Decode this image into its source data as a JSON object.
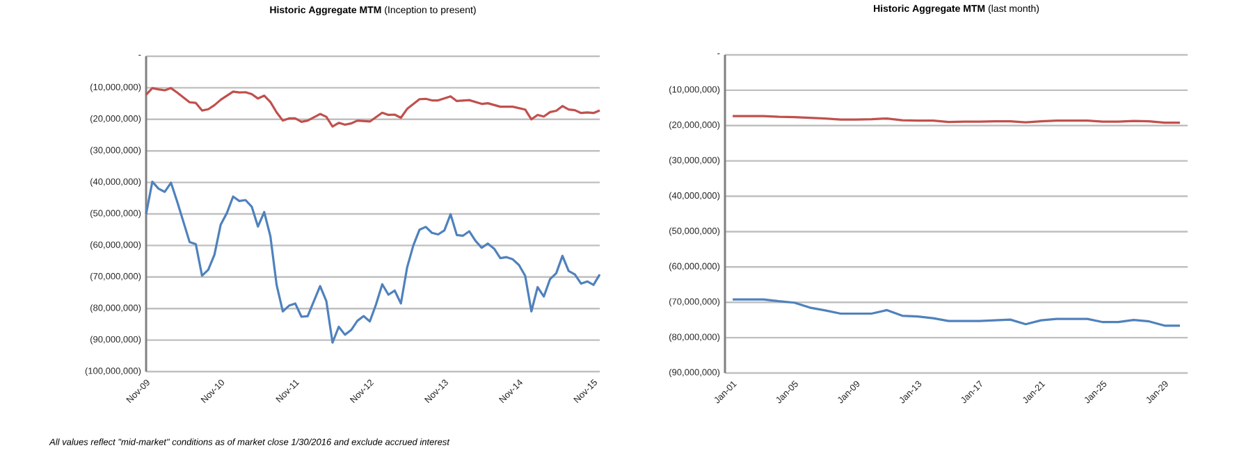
{
  "chart_data": [
    {
      "type": "line",
      "title": "**Historic Aggregate MTM** (Inception to present)",
      "xlim": [
        "2009-11",
        "2015-12"
      ],
      "xticks": [
        {
          "value": "2009-11",
          "label": "Nov-09"
        },
        {
          "value": "2010-11",
          "label": "Nov-10"
        },
        {
          "value": "2011-11",
          "label": "Nov-11"
        },
        {
          "value": "2012-11",
          "label": "Nov-12"
        },
        {
          "value": "2013-11",
          "label": "Nov-13"
        },
        {
          "value": "2014-11",
          "label": "Nov-14"
        },
        {
          "value": "2015-11",
          "label": "Nov-15"
        }
      ],
      "ylim": [
        -100000000,
        0
      ],
      "yticks": [
        {
          "value": 0,
          "label": "-"
        },
        {
          "value": -10000000,
          "label": "(10,000,000)"
        },
        {
          "value": -20000000,
          "label": "(20,000,000)"
        },
        {
          "value": -30000000,
          "label": "(30,000,000)"
        },
        {
          "value": -40000000,
          "label": "(40,000,000)"
        },
        {
          "value": -50000000,
          "label": "(50,000,000)"
        },
        {
          "value": -60000000,
          "label": "(60,000,000)"
        },
        {
          "value": -70000000,
          "label": "(70,000,000)"
        },
        {
          "value": -80000000,
          "label": "(80,000,000)"
        },
        {
          "value": -90000000,
          "label": "(90,000,000)"
        },
        {
          "value": -100000000,
          "label": "(100,000,000)"
        }
      ],
      "grid": "y",
      "series": [
        {
          "color": "#c0504d",
          "x": [
            "2009-11",
            "2009-12",
            "2010-01",
            "2010-02",
            "2010-03",
            "2010-04",
            "2010-06",
            "2010-07",
            "2010-08",
            "2010-09",
            "2010-10",
            "2010-11",
            "2010-12",
            "2011-01",
            "2011-02",
            "2011-03",
            "2011-04",
            "2011-05",
            "2011-06",
            "2011-07",
            "2011-08",
            "2011-09",
            "2011-10",
            "2011-11",
            "2011-12",
            "2012-01",
            "2012-03",
            "2012-04",
            "2012-05",
            "2012-06",
            "2012-07",
            "2012-08",
            "2012-09",
            "2012-11",
            "2013-01",
            "2013-02",
            "2013-03",
            "2013-04",
            "2013-05",
            "2013-07",
            "2013-08",
            "2013-09",
            "2013-10",
            "2013-12",
            "2014-01",
            "2014-03",
            "2014-05",
            "2014-06",
            "2014-08",
            "2014-10",
            "2014-12",
            "2015-01",
            "2015-02",
            "2015-03",
            "2015-04",
            "2015-05",
            "2015-06",
            "2015-07",
            "2015-08",
            "2015-09",
            "2015-10",
            "2015-11",
            "2015-12"
          ],
          "values": [
            -12200000,
            -10100000,
            -10500000,
            -10800000,
            -10100000,
            -11500000,
            -14600000,
            -14800000,
            -17200000,
            -16800000,
            -15500000,
            -13800000,
            -12500000,
            -11200000,
            -11500000,
            -11400000,
            -12000000,
            -13400000,
            -12500000,
            -14500000,
            -17800000,
            -20400000,
            -19700000,
            -19700000,
            -20800000,
            -20400000,
            -18300000,
            -19200000,
            -22300000,
            -21100000,
            -21700000,
            -21300000,
            -20400000,
            -20700000,
            -17900000,
            -18600000,
            -18500000,
            -19500000,
            -16700000,
            -13600000,
            -13500000,
            -14000000,
            -14000000,
            -12700000,
            -14200000,
            -13900000,
            -15100000,
            -14900000,
            -16000000,
            -16000000,
            -16900000,
            -20000000,
            -18600000,
            -19100000,
            -17700000,
            -17300000,
            -15800000,
            -16900000,
            -17100000,
            -18000000,
            -17800000,
            -18000000,
            -17200000
          ]
        },
        {
          "color": "#4f81bd",
          "x": [
            "2009-11",
            "2009-12",
            "2010-01",
            "2010-02",
            "2010-03",
            "2010-04",
            "2010-06",
            "2010-07",
            "2010-08",
            "2010-09",
            "2010-10",
            "2010-11",
            "2010-12",
            "2011-01",
            "2011-02",
            "2011-03",
            "2011-04",
            "2011-05",
            "2011-06",
            "2011-07",
            "2011-08",
            "2011-09",
            "2011-10",
            "2011-11",
            "2011-12",
            "2012-01",
            "2012-03",
            "2012-04",
            "2012-05",
            "2012-06",
            "2012-07",
            "2012-08",
            "2012-09",
            "2012-10",
            "2012-11",
            "2012-12",
            "2013-01",
            "2013-02",
            "2013-03",
            "2013-04",
            "2013-05",
            "2013-06",
            "2013-07",
            "2013-08",
            "2013-09",
            "2013-10",
            "2013-11",
            "2013-12",
            "2014-01",
            "2014-02",
            "2014-03",
            "2014-04",
            "2014-05",
            "2014-06",
            "2014-07",
            "2014-08",
            "2014-09",
            "2014-10",
            "2014-11",
            "2014-12",
            "2015-01",
            "2015-02",
            "2015-03",
            "2015-04",
            "2015-05",
            "2015-06",
            "2015-07",
            "2015-08",
            "2015-09",
            "2015-10",
            "2015-11",
            "2015-12"
          ],
          "values": [
            -50000000,
            -39800000,
            -42000000,
            -43000000,
            -40100000,
            -46100000,
            -58900000,
            -59600000,
            -69600000,
            -67700000,
            -62900000,
            -53400000,
            -49700000,
            -44500000,
            -45900000,
            -45600000,
            -47700000,
            -54000000,
            -49400000,
            -57100000,
            -72500000,
            -80900000,
            -79100000,
            -78400000,
            -82600000,
            -82400000,
            -72900000,
            -77600000,
            -90800000,
            -85800000,
            -88300000,
            -86800000,
            -83900000,
            -82400000,
            -84100000,
            -78700000,
            -72300000,
            -75600000,
            -74300000,
            -78400000,
            -67000000,
            -60000000,
            -55000000,
            -54100000,
            -56000000,
            -56500000,
            -55200000,
            -50100000,
            -56700000,
            -56900000,
            -55500000,
            -58500000,
            -60700000,
            -59400000,
            -61000000,
            -64000000,
            -63700000,
            -64400000,
            -66200000,
            -69600000,
            -80900000,
            -73200000,
            -76200000,
            -70700000,
            -68800000,
            -63300000,
            -68100000,
            -69200000,
            -72100000,
            -71400000,
            -72500000,
            -69200000
          ]
        }
      ],
      "annotations": [
        "All values reflect \"mid-market\" conditions as of market close 1/30/2016 and exclude accrued interest"
      ]
    },
    {
      "type": "line",
      "title": "**Historic Aggregate MTM** (last month)",
      "categories": [
        "Jan-01",
        null,
        null,
        null,
        "Jan-05",
        null,
        null,
        null,
        "Jan-09",
        null,
        null,
        null,
        "Jan-13",
        null,
        null,
        null,
        "Jan-17",
        null,
        null,
        null,
        "Jan-21",
        null,
        null,
        null,
        "Jan-25",
        null,
        null,
        null,
        "Jan-29",
        null
      ],
      "ylim": [
        -90000000,
        0
      ],
      "yticks": [
        {
          "value": 0,
          "label": "-"
        },
        {
          "value": -10000000,
          "label": "(10,000,000)"
        },
        {
          "value": -20000000,
          "label": "(20,000,000)"
        },
        {
          "value": -30000000,
          "label": "(30,000,000)"
        },
        {
          "value": -40000000,
          "label": "(40,000,000)"
        },
        {
          "value": -50000000,
          "label": "(50,000,000)"
        },
        {
          "value": -60000000,
          "label": "(60,000,000)"
        },
        {
          "value": -70000000,
          "label": "(70,000,000)"
        },
        {
          "value": -80000000,
          "label": "(80,000,000)"
        },
        {
          "value": -90000000,
          "label": "(90,000,000)"
        }
      ],
      "grid": "y",
      "series": [
        {
          "color": "#c0504d",
          "values": [
            -17300000,
            -17300000,
            -17300000,
            -17500000,
            -17600000,
            -17800000,
            -18000000,
            -18300000,
            -18300000,
            -18200000,
            -18000000,
            -18500000,
            -18600000,
            -18600000,
            -19000000,
            -18900000,
            -18900000,
            -18800000,
            -18800000,
            -19100000,
            -18800000,
            -18600000,
            -18600000,
            -18600000,
            -18900000,
            -18900000,
            -18700000,
            -18800000,
            -19200000,
            -19200000
          ]
        },
        {
          "color": "#4f81bd",
          "values": [
            -69200000,
            -69200000,
            -69200000,
            -69700000,
            -70100000,
            -71500000,
            -72300000,
            -73200000,
            -73200000,
            -73200000,
            -72200000,
            -73800000,
            -74000000,
            -74500000,
            -75300000,
            -75300000,
            -75300000,
            -75100000,
            -74900000,
            -76200000,
            -75100000,
            -74700000,
            -74700000,
            -74700000,
            -75600000,
            -75600000,
            -75000000,
            -75400000,
            -76600000,
            -76600000
          ]
        }
      ]
    }
  ]
}
